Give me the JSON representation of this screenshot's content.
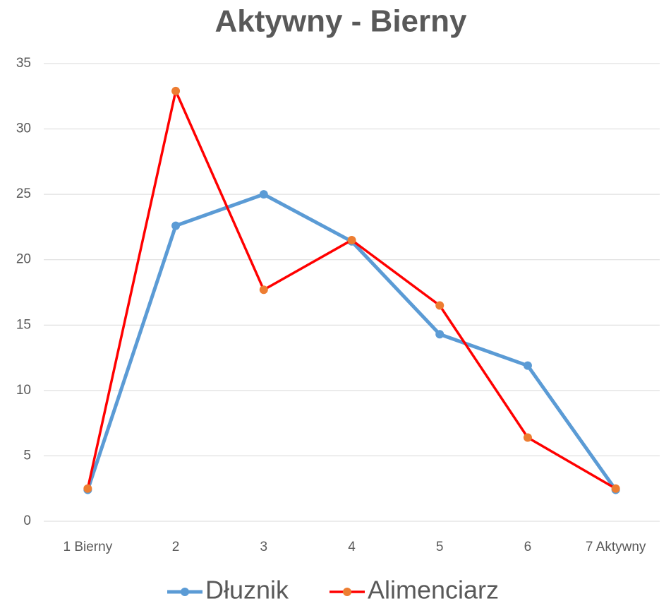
{
  "chart_data": {
    "type": "line",
    "title": "Aktywny - Bierny",
    "categories": [
      "1 Bierny",
      "2",
      "3",
      "4",
      "5",
      "6",
      "7 Aktywny"
    ],
    "series": [
      {
        "name": "Dłuznik",
        "color": "#5b9bd5",
        "marker_color": "#5b9bd5",
        "values": [
          2.4,
          22.6,
          25.0,
          21.4,
          14.3,
          11.9,
          2.4
        ]
      },
      {
        "name": "Alimenciarz",
        "color": "#ff0000",
        "marker_color": "#ed7d31",
        "values": [
          2.5,
          32.9,
          17.7,
          21.5,
          16.5,
          6.4,
          2.5
        ]
      }
    ],
    "ylim": [
      0,
      35
    ],
    "yticks": [
      0,
      5,
      10,
      15,
      20,
      25,
      30,
      35
    ],
    "grid": true,
    "legend": "bottom"
  }
}
